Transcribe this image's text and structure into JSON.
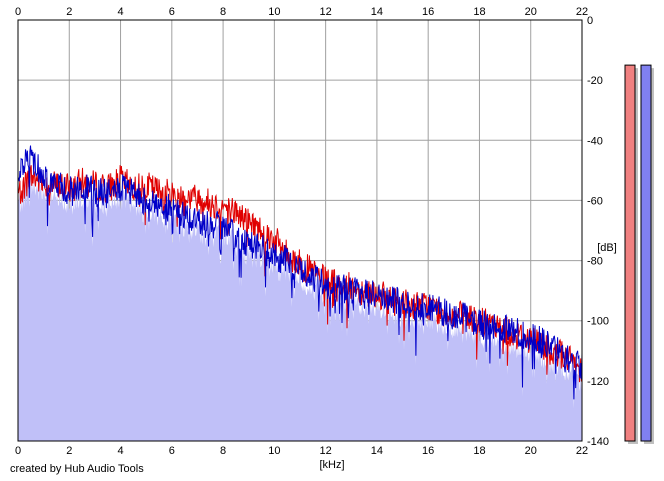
{
  "credit": "created by Hub Audio Tools",
  "chart_data": {
    "type": "area",
    "xlabel": "[kHz]",
    "ylabel": "[dB]",
    "xlim": [
      0,
      22
    ],
    "ylim": [
      -140,
      0
    ],
    "x_ticks": [
      0,
      2,
      4,
      6,
      8,
      10,
      12,
      14,
      16,
      18,
      20,
      22
    ],
    "y_ticks": [
      0,
      -20,
      -40,
      -60,
      -80,
      -100,
      -120,
      -140
    ],
    "grid": true,
    "fill_color": "#c0c0f8",
    "series": [
      {
        "color": "#e00000",
        "x": [
          0,
          0.5,
          1,
          1.5,
          2,
          2.5,
          3,
          3.5,
          4,
          4.5,
          5,
          5.5,
          6,
          6.5,
          7,
          7.5,
          8,
          8.5,
          9,
          9.5,
          10,
          10.5,
          11,
          11.5,
          12,
          12.5,
          13,
          13.5,
          14,
          14.5,
          15,
          15.5,
          16,
          16.5,
          17,
          17.5,
          18,
          18.5,
          19,
          19.5,
          20,
          20.5,
          21,
          21.5,
          22
        ],
        "values": [
          -58,
          -52,
          -54,
          -55,
          -56,
          -54,
          -55,
          -56,
          -53,
          -56,
          -55,
          -57,
          -58,
          -59,
          -59,
          -61,
          -62,
          -64,
          -67,
          -70,
          -73,
          -78,
          -81,
          -84,
          -87,
          -88,
          -89,
          -90,
          -91,
          -93,
          -94,
          -95,
          -95,
          -97,
          -98,
          -99,
          -100,
          -102,
          -103,
          -105,
          -106,
          -108,
          -110,
          -113,
          -116
        ]
      },
      {
        "color": "#0000c8",
        "x": [
          0,
          0.5,
          1,
          1.5,
          2,
          2.5,
          3,
          3.5,
          4,
          4.5,
          5,
          5.5,
          6,
          6.5,
          7,
          7.5,
          8,
          8.5,
          9,
          9.5,
          10,
          10.5,
          11,
          11.5,
          12,
          12.5,
          13,
          13.5,
          14,
          14.5,
          15,
          15.5,
          16,
          16.5,
          17,
          17.5,
          18,
          18.5,
          19,
          19.5,
          20,
          20.5,
          21,
          21.5,
          22
        ],
        "values": [
          -50,
          -45,
          -52,
          -55,
          -57,
          -56,
          -57,
          -58,
          -56,
          -58,
          -60,
          -62,
          -63,
          -65,
          -67,
          -68,
          -69,
          -72,
          -74,
          -76,
          -79,
          -80,
          -83,
          -86,
          -88,
          -89,
          -90,
          -91,
          -91,
          -93,
          -94,
          -95,
          -95,
          -97,
          -98,
          -99,
          -101,
          -102,
          -103,
          -104,
          -105,
          -107,
          -110,
          -113,
          -115
        ]
      }
    ],
    "level_meters": [
      {
        "color": "#f08080",
        "level_db": -15
      },
      {
        "color": "#8080f0",
        "level_db": -15
      }
    ]
  }
}
